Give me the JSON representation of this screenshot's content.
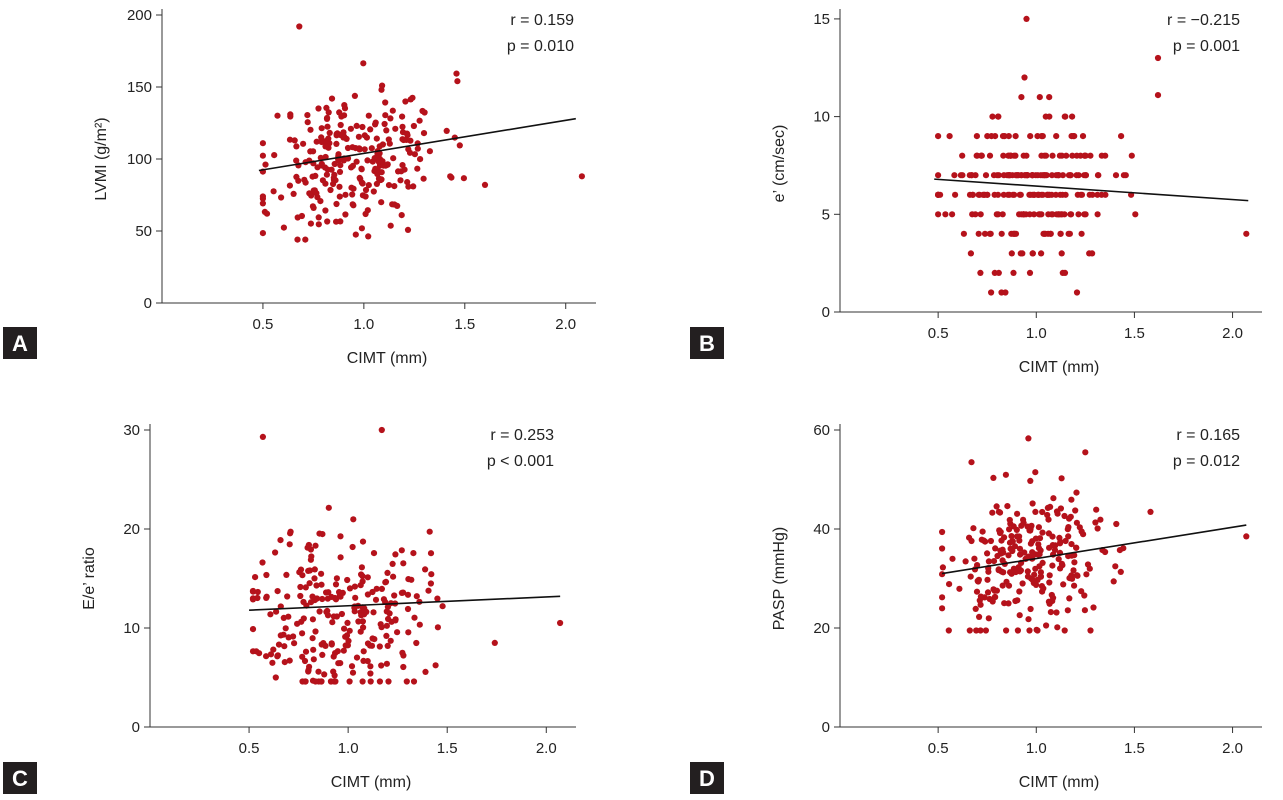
{
  "accent_color": "#b5121b",
  "badge_color": "#231f20",
  "chart_data": [
    {
      "panel": "A",
      "type": "scatter",
      "xlabel": "CIMT (mm)",
      "ylabel": "LVMI (g/m²)",
      "xlim": [
        0.0,
        2.15
      ],
      "ylim": [
        0,
        200
      ],
      "xticks": [
        0.5,
        1.0,
        1.5,
        2.0
      ],
      "xtick_labels": [
        "0.5",
        "1.0",
        "1.5",
        "2.0"
      ],
      "yticks": [
        0,
        50,
        100,
        150,
        200
      ],
      "ytick_labels": [
        "0",
        "50",
        "100",
        "150",
        "200"
      ],
      "stat_r": "r = 0.159",
      "stat_p": "p = 0.010",
      "fit": {
        "x": [
          0.48,
          2.05
        ],
        "y": [
          92,
          128
        ]
      },
      "points": {
        "n": 260,
        "seed": 11,
        "x_mean": 0.95,
        "x_sd": 0.22,
        "x_min": 0.5,
        "x_max": 1.66,
        "y_mean": 100,
        "y_sd": 24,
        "y_min": 44,
        "y_max": 192,
        "extras": [
          [
            2.08,
            88
          ],
          [
            0.68,
            192
          ],
          [
            0.52,
            62
          ],
          [
            1.6,
            82
          ]
        ]
      }
    },
    {
      "panel": "B",
      "type": "scatter",
      "xlabel": "CIMT (mm)",
      "ylabel": "e’ (cm/sec)",
      "xlim": [
        0.0,
        2.15
      ],
      "ylim": [
        0,
        15.2
      ],
      "xticks": [
        0.5,
        1.0,
        1.5,
        2.0
      ],
      "xtick_labels": [
        "0.5",
        "1.0",
        "1.5",
        "2.0"
      ],
      "yticks": [
        0,
        5,
        10,
        15
      ],
      "ytick_labels": [
        "0",
        "5",
        "10",
        "15"
      ],
      "stat_r": "r = −0.215",
      "stat_p": "p = 0.001",
      "fit": {
        "x": [
          0.48,
          2.08
        ],
        "y": [
          6.8,
          5.7
        ]
      },
      "points": {
        "n": 260,
        "seed": 23,
        "x_mean": 0.95,
        "x_sd": 0.22,
        "x_min": 0.5,
        "x_max": 1.62,
        "y_mean": 6.3,
        "y_sd": 1.9,
        "y_min": 1.0,
        "y_max": 15,
        "round": 1,
        "extras": [
          [
            2.07,
            4.0
          ],
          [
            0.95,
            15.0
          ],
          [
            1.62,
            13.0
          ],
          [
            0.77,
            1.0
          ],
          [
            1.62,
            11.1
          ]
        ]
      }
    },
    {
      "panel": "C",
      "type": "scatter",
      "xlabel": "CIMT (mm)",
      "ylabel": "E/e’ ratio",
      "xlim": [
        0.0,
        2.15
      ],
      "ylim": [
        0,
        30
      ],
      "xticks": [
        0.5,
        1.0,
        1.5,
        2.0
      ],
      "xtick_labels": [
        "0.5",
        "1.0",
        "1.5",
        "2.0"
      ],
      "yticks": [
        0,
        10,
        20,
        30
      ],
      "ytick_labels": [
        "0",
        "10",
        "20",
        "30"
      ],
      "stat_r": "r = 0.253",
      "stat_p": "p < 0.001",
      "fit": {
        "x": [
          0.5,
          2.07
        ],
        "y": [
          11.8,
          13.2
        ]
      },
      "points": {
        "n": 260,
        "seed": 37,
        "x_mean": 0.95,
        "x_sd": 0.22,
        "x_min": 0.52,
        "x_max": 1.62,
        "y_mean": 11.5,
        "y_sd": 4.4,
        "y_min": 4.6,
        "y_max": 30,
        "extras": [
          [
            2.07,
            10.5
          ],
          [
            0.57,
            29.3
          ],
          [
            1.17,
            30.0
          ],
          [
            1.74,
            8.5
          ]
        ]
      }
    },
    {
      "panel": "D",
      "type": "scatter",
      "xlabel": "CIMT (mm)",
      "ylabel": "PASP (mmHg)",
      "xlim": [
        0.0,
        2.15
      ],
      "ylim": [
        0,
        60
      ],
      "xticks": [
        0.5,
        1.0,
        1.5,
        2.0
      ],
      "xtick_labels": [
        "0.5",
        "1.0",
        "1.5",
        "2.0"
      ],
      "yticks": [
        0,
        20,
        40,
        60
      ],
      "ytick_labels": [
        "0",
        "20",
        "40",
        "60"
      ],
      "stat_r": "r = 0.165",
      "stat_p": "p = 0.012",
      "fit": {
        "x": [
          0.52,
          2.07
        ],
        "y": [
          31,
          40.8
        ]
      },
      "points": {
        "n": 260,
        "seed": 53,
        "x_mean": 0.98,
        "x_sd": 0.22,
        "x_min": 0.52,
        "x_max": 1.66,
        "y_mean": 33,
        "y_sd": 7.5,
        "y_min": 19.5,
        "y_max": 58.5,
        "extras": [
          [
            2.07,
            38.5
          ],
          [
            0.96,
            58.3
          ],
          [
            1.25,
            55.5
          ],
          [
            0.67,
            53.5
          ]
        ]
      }
    }
  ]
}
